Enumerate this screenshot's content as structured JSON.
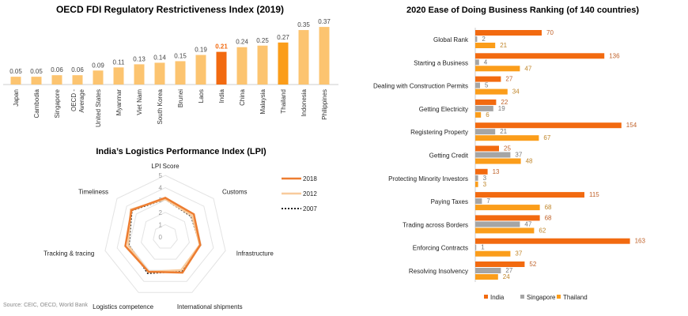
{
  "colors": {
    "india": "#f26a10",
    "singapore": "#a5a5a5",
    "thailand": "#fb9d1a",
    "bar_light": "#fcc470",
    "r2018": "#ed7d31",
    "r2012": "#f8cb9c",
    "r2007": "#222222"
  },
  "source": "Source: CEIC, OECD, World Bank",
  "chart_data": [
    {
      "type": "bar",
      "title": "OECD FDI Regulatory Restrictiveness Index (2019)",
      "categories": [
        "Japan",
        "Cambodia",
        "Singapore",
        "OECD - Average",
        "United States",
        "Myanmar",
        "Viet Nam",
        "South Korea",
        "Brunei",
        "Laos",
        "India",
        "China",
        "Malaysia",
        "Thailand",
        "Indonesia",
        "Philippines"
      ],
      "values": [
        0.05,
        0.05,
        0.06,
        0.06,
        0.09,
        0.11,
        0.13,
        0.14,
        0.15,
        0.19,
        0.21,
        0.24,
        0.25,
        0.27,
        0.35,
        0.37
      ],
      "value_labels": [
        "0.05",
        "0.05",
        "0.06",
        "0.06",
        "0.09",
        "0.11",
        "0.13",
        "0.14",
        "0.15",
        "0.19",
        "0.21",
        "0.24",
        "0.25",
        "0.27",
        "0.35",
        "0.37"
      ],
      "highlight": {
        "India": "india",
        "Thailand": "thailand"
      },
      "ylim": [
        0,
        0.4
      ]
    },
    {
      "type": "radar",
      "title": "India’s Logistics Performance Index (LPI)",
      "axes": [
        "LPI Score",
        "Customs",
        "Infrastructure",
        "International shipments",
        "Logistics competence",
        "Tracking & tracing",
        "Timeliness"
      ],
      "ticks": [
        "0",
        "1",
        "2",
        "3",
        "4",
        "5"
      ],
      "range": [
        0,
        5
      ],
      "series": [
        {
          "name": "2018",
          "values": [
            3.18,
            2.96,
            2.91,
            3.21,
            3.13,
            3.32,
            3.5
          ]
        },
        {
          "name": "2012",
          "values": [
            3.08,
            2.77,
            2.87,
            2.98,
            3.14,
            3.09,
            3.58
          ]
        },
        {
          "name": "2007",
          "values": [
            3.07,
            2.69,
            2.9,
            3.08,
            3.27,
            3.03,
            3.47
          ]
        }
      ],
      "legend": "right"
    },
    {
      "type": "bar",
      "orientation": "horizontal",
      "title": "2020 Ease of Doing Business Ranking (of 140 countries)",
      "categories": [
        "Global Rank",
        "Starting a Business",
        "Dealing with Construction Permits",
        "Getting Electricity",
        "Registering Property",
        "Getting Credit",
        "Protecting Minority Investors",
        "Paying Taxes",
        "Trading across Borders",
        "Enforcing Contracts",
        "Resolving Insolvency"
      ],
      "series": [
        {
          "name": "India",
          "values": [
            70,
            136,
            27,
            22,
            154,
            25,
            13,
            115,
            68,
            163,
            52
          ]
        },
        {
          "name": "Singapore",
          "values": [
            2,
            4,
            5,
            19,
            21,
            37,
            3,
            7,
            47,
            1,
            27
          ]
        },
        {
          "name": "Thailand",
          "values": [
            21,
            47,
            34,
            6,
            67,
            48,
            3,
            68,
            62,
            37,
            24
          ]
        }
      ],
      "legend": "bottom"
    }
  ]
}
